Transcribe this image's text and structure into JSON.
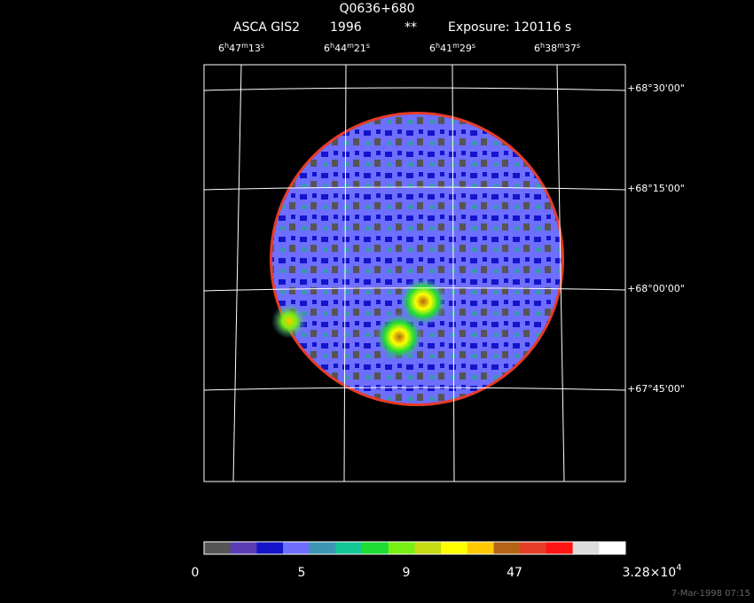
{
  "header": {
    "title": "Q0636+680",
    "instrument": "ASCA GIS2",
    "year": "1996",
    "flag": "**",
    "exposure": "Exposure: 120116 s"
  },
  "ra_labels": [
    [
      "6",
      "h",
      "47",
      "m",
      "13",
      "s"
    ],
    [
      "6",
      "h",
      "44",
      "m",
      "21",
      "s"
    ],
    [
      "6",
      "h",
      "41",
      "m",
      "29",
      "s"
    ],
    [
      "6",
      "h",
      "38",
      "m",
      "37",
      "s"
    ]
  ],
  "dec_labels": [
    "+68°30'00\"",
    "+68°15'00\"",
    "+68°00'00\"",
    "+67°45'00\""
  ],
  "colorbar": {
    "colors": [
      "#555555",
      "#5a3cb4",
      "#1414c8",
      "#6e6eff",
      "#3c96b4",
      "#14c896",
      "#1edc32",
      "#78f014",
      "#c8dc14",
      "#ffff00",
      "#ffc800",
      "#b46414",
      "#e63c28",
      "#ff1414",
      "#dcdcdc",
      "#ffffff"
    ],
    "labels": [
      [
        "0"
      ],
      [
        "5"
      ],
      [
        "9"
      ],
      [
        "47"
      ],
      [
        "3.28×10",
        "4"
      ]
    ]
  },
  "footer": "7-Mar-1998 07:15"
}
